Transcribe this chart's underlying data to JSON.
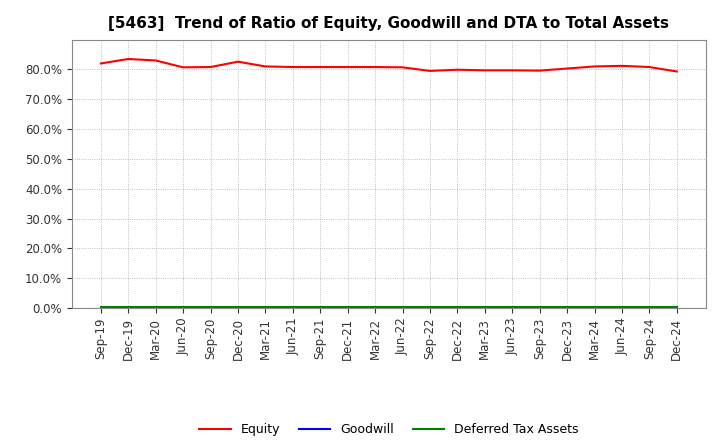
{
  "title": "[5463]  Trend of Ratio of Equity, Goodwill and DTA to Total Assets",
  "x_labels": [
    "Sep-19",
    "Dec-19",
    "Mar-20",
    "Jun-20",
    "Sep-20",
    "Dec-20",
    "Mar-21",
    "Jun-21",
    "Sep-21",
    "Dec-21",
    "Mar-22",
    "Jun-22",
    "Sep-22",
    "Dec-22",
    "Mar-23",
    "Jun-23",
    "Sep-23",
    "Dec-23",
    "Mar-24",
    "Jun-24",
    "Sep-24",
    "Dec-24"
  ],
  "equity": [
    0.82,
    0.835,
    0.83,
    0.807,
    0.808,
    0.826,
    0.81,
    0.808,
    0.808,
    0.808,
    0.808,
    0.807,
    0.795,
    0.799,
    0.797,
    0.797,
    0.796,
    0.803,
    0.81,
    0.812,
    0.808,
    0.793
  ],
  "goodwill": [
    0.001,
    0.001,
    0.001,
    0.001,
    0.001,
    0.001,
    0.001,
    0.001,
    0.001,
    0.001,
    0.001,
    0.001,
    0.001,
    0.001,
    0.001,
    0.001,
    0.001,
    0.001,
    0.001,
    0.001,
    0.001,
    0.001
  ],
  "dta": [
    0.002,
    0.002,
    0.002,
    0.002,
    0.002,
    0.002,
    0.002,
    0.002,
    0.002,
    0.002,
    0.002,
    0.002,
    0.002,
    0.002,
    0.002,
    0.002,
    0.002,
    0.002,
    0.002,
    0.002,
    0.002,
    0.002
  ],
  "equity_color": "#FF0000",
  "goodwill_color": "#0000FF",
  "dta_color": "#008000",
  "ylim": [
    0.0,
    0.9
  ],
  "yticks": [
    0.0,
    0.1,
    0.2,
    0.3,
    0.4,
    0.5,
    0.6,
    0.7,
    0.8
  ],
  "background_color": "#FFFFFF",
  "plot_bg_color": "#FFFFFF",
  "grid_color": "#AAAAAA",
  "legend_labels": [
    "Equity",
    "Goodwill",
    "Deferred Tax Assets"
  ],
  "title_fontsize": 11,
  "tick_fontsize": 8.5
}
